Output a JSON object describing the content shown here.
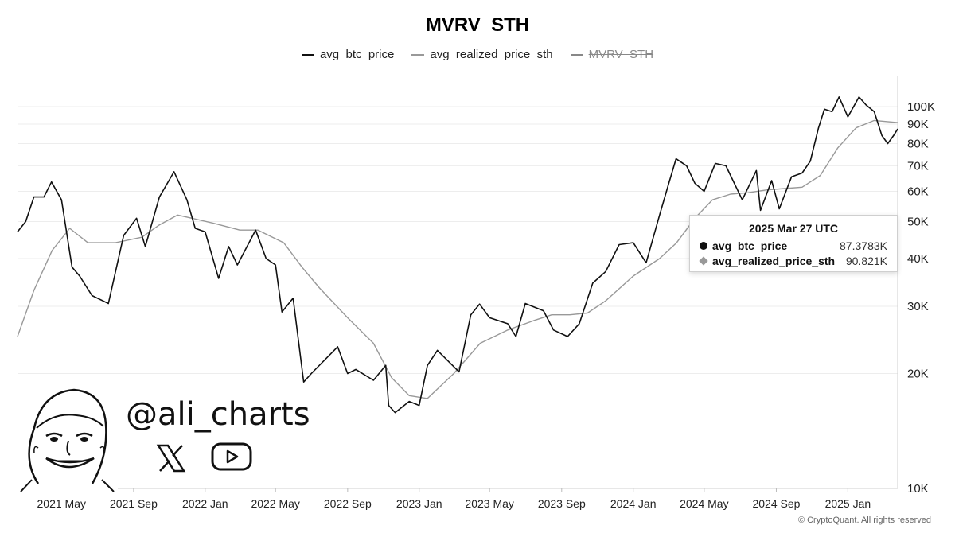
{
  "chart_data": {
    "type": "line",
    "title": "MVRV_STH",
    "legend": [
      {
        "name": "avg_btc_price",
        "color": "#111111",
        "visible": true
      },
      {
        "name": "avg_realized_price_sth",
        "color": "#999999",
        "visible": true
      },
      {
        "name": "MVRV_STH",
        "color": "#888888",
        "visible": false
      }
    ],
    "y_scale": "log",
    "ylim": [
      10000,
      120000
    ],
    "y_ticks": [
      {
        "value": 10000,
        "label": "10K"
      },
      {
        "value": 20000,
        "label": "20K"
      },
      {
        "value": 30000,
        "label": "30K"
      },
      {
        "value": 40000,
        "label": "40K"
      },
      {
        "value": 50000,
        "label": "50K"
      },
      {
        "value": 60000,
        "label": "60K"
      },
      {
        "value": 70000,
        "label": "70K"
      },
      {
        "value": 80000,
        "label": "80K"
      },
      {
        "value": 90000,
        "label": "90K"
      },
      {
        "value": 100000,
        "label": "100K"
      }
    ],
    "xlim": [
      "2021-02-15",
      "2025-03-27"
    ],
    "x_ticks": [
      {
        "date": "2021-05-01",
        "label": "2021 May"
      },
      {
        "date": "2021-09-01",
        "label": "2021 Sep"
      },
      {
        "date": "2022-01-01",
        "label": "2022 Jan"
      },
      {
        "date": "2022-05-01",
        "label": "2022 May"
      },
      {
        "date": "2022-09-01",
        "label": "2022 Sep"
      },
      {
        "date": "2023-01-01",
        "label": "2023 Jan"
      },
      {
        "date": "2023-05-01",
        "label": "2023 May"
      },
      {
        "date": "2023-09-01",
        "label": "2023 Sep"
      },
      {
        "date": "2024-01-01",
        "label": "2024 Jan"
      },
      {
        "date": "2024-05-01",
        "label": "2024 May"
      },
      {
        "date": "2024-09-01",
        "label": "2024 Sep"
      },
      {
        "date": "2025-01-01",
        "label": "2025 Jan"
      }
    ],
    "grid": "horizontal",
    "series": [
      {
        "name": "avg_btc_price",
        "x": [
          "2021-02-15",
          "2021-03-01",
          "2021-03-15",
          "2021-04-01",
          "2021-04-14",
          "2021-05-01",
          "2021-05-19",
          "2021-06-01",
          "2021-06-22",
          "2021-07-20",
          "2021-08-15",
          "2021-09-06",
          "2021-09-21",
          "2021-10-15",
          "2021-11-09",
          "2021-12-01",
          "2021-12-15",
          "2022-01-01",
          "2022-01-24",
          "2022-02-10",
          "2022-02-25",
          "2022-03-28",
          "2022-04-15",
          "2022-05-01",
          "2022-05-12",
          "2022-05-31",
          "2022-06-18",
          "2022-07-01",
          "2022-08-15",
          "2022-09-01",
          "2022-09-15",
          "2022-10-15",
          "2022-11-05",
          "2022-11-10",
          "2022-11-21",
          "2022-12-15",
          "2023-01-01",
          "2023-01-15",
          "2023-02-01",
          "2023-03-10",
          "2023-03-30",
          "2023-04-14",
          "2023-05-01",
          "2023-06-01",
          "2023-06-15",
          "2023-07-01",
          "2023-08-01",
          "2023-08-18",
          "2023-09-11",
          "2023-10-01",
          "2023-10-24",
          "2023-11-15",
          "2023-12-08",
          "2024-01-01",
          "2024-01-23",
          "2024-02-15",
          "2024-03-01",
          "2024-03-14",
          "2024-04-01",
          "2024-04-15",
          "2024-05-01",
          "2024-05-20",
          "2024-06-07",
          "2024-07-05",
          "2024-07-29",
          "2024-08-05",
          "2024-08-24",
          "2024-09-06",
          "2024-09-27",
          "2024-10-15",
          "2024-10-29",
          "2024-11-12",
          "2024-11-22",
          "2024-12-05",
          "2024-12-17",
          "2025-01-01",
          "2025-01-20",
          "2025-02-01",
          "2025-02-15",
          "2025-02-28",
          "2025-03-10",
          "2025-03-20",
          "2025-03-27"
        ],
        "y": [
          47000,
          50000,
          58000,
          58000,
          63500,
          57000,
          38000,
          36000,
          32000,
          30500,
          46000,
          51000,
          43000,
          58000,
          67500,
          57000,
          48000,
          47000,
          35500,
          43000,
          38500,
          47500,
          40000,
          38500,
          29000,
          31500,
          19000,
          20000,
          23500,
          20000,
          20500,
          19200,
          21000,
          16500,
          15800,
          16900,
          16500,
          21000,
          23000,
          20200,
          28500,
          30400,
          28000,
          27000,
          25000,
          30500,
          29200,
          26000,
          25000,
          27000,
          34500,
          37000,
          43500,
          44000,
          39000,
          52000,
          62500,
          73000,
          70000,
          63000,
          60000,
          71000,
          70000,
          57000,
          68000,
          53500,
          64000,
          54000,
          65500,
          67000,
          72000,
          88000,
          98500,
          97000,
          106000,
          94000,
          106000,
          101000,
          97000,
          84000,
          80000,
          84000,
          87378
        ]
      },
      {
        "name": "avg_realized_price_sth",
        "x": [
          "2021-02-15",
          "2021-03-15",
          "2021-04-15",
          "2021-05-15",
          "2021-06-15",
          "2021-08-01",
          "2021-09-15",
          "2021-10-15",
          "2021-11-15",
          "2021-12-10",
          "2022-01-15",
          "2022-03-01",
          "2022-04-01",
          "2022-05-15",
          "2022-06-15",
          "2022-07-15",
          "2022-09-01",
          "2022-10-15",
          "2022-11-15",
          "2022-12-15",
          "2023-01-15",
          "2023-03-01",
          "2023-04-15",
          "2023-06-01",
          "2023-07-15",
          "2023-08-15",
          "2023-09-15",
          "2023-10-15",
          "2023-11-15",
          "2024-01-01",
          "2024-02-15",
          "2024-03-15",
          "2024-04-15",
          "2024-05-15",
          "2024-06-15",
          "2024-07-15",
          "2024-08-15",
          "2024-09-15",
          "2024-10-15",
          "2024-11-15",
          "2024-12-15",
          "2025-01-15",
          "2025-02-15",
          "2025-03-27"
        ],
        "y": [
          25000,
          33000,
          42000,
          48000,
          44000,
          44000,
          45500,
          49000,
          52000,
          51000,
          49500,
          47500,
          47500,
          44000,
          38000,
          33500,
          28000,
          24000,
          19500,
          17500,
          17200,
          20000,
          24000,
          26000,
          27500,
          28500,
          28500,
          28800,
          31000,
          36000,
          40000,
          44000,
          51000,
          57000,
          59000,
          59500,
          60500,
          61000,
          61500,
          66000,
          78000,
          88000,
          92000,
          90821
        ]
      }
    ],
    "tooltip": {
      "date": "2025 Mar 27 UTC",
      "rows": [
        {
          "name": "avg_btc_price",
          "value": "87.3783K"
        },
        {
          "name": "avg_realized_price_sth",
          "value": "90.821K"
        }
      ]
    }
  },
  "branding": {
    "handle": "@ali_charts",
    "copyright": "© CryptoQuant. All rights reserved",
    "social_icons": [
      "x-logo-icon",
      "youtube-play-icon"
    ],
    "avatar_icon": "cartoon-face-avatar"
  }
}
